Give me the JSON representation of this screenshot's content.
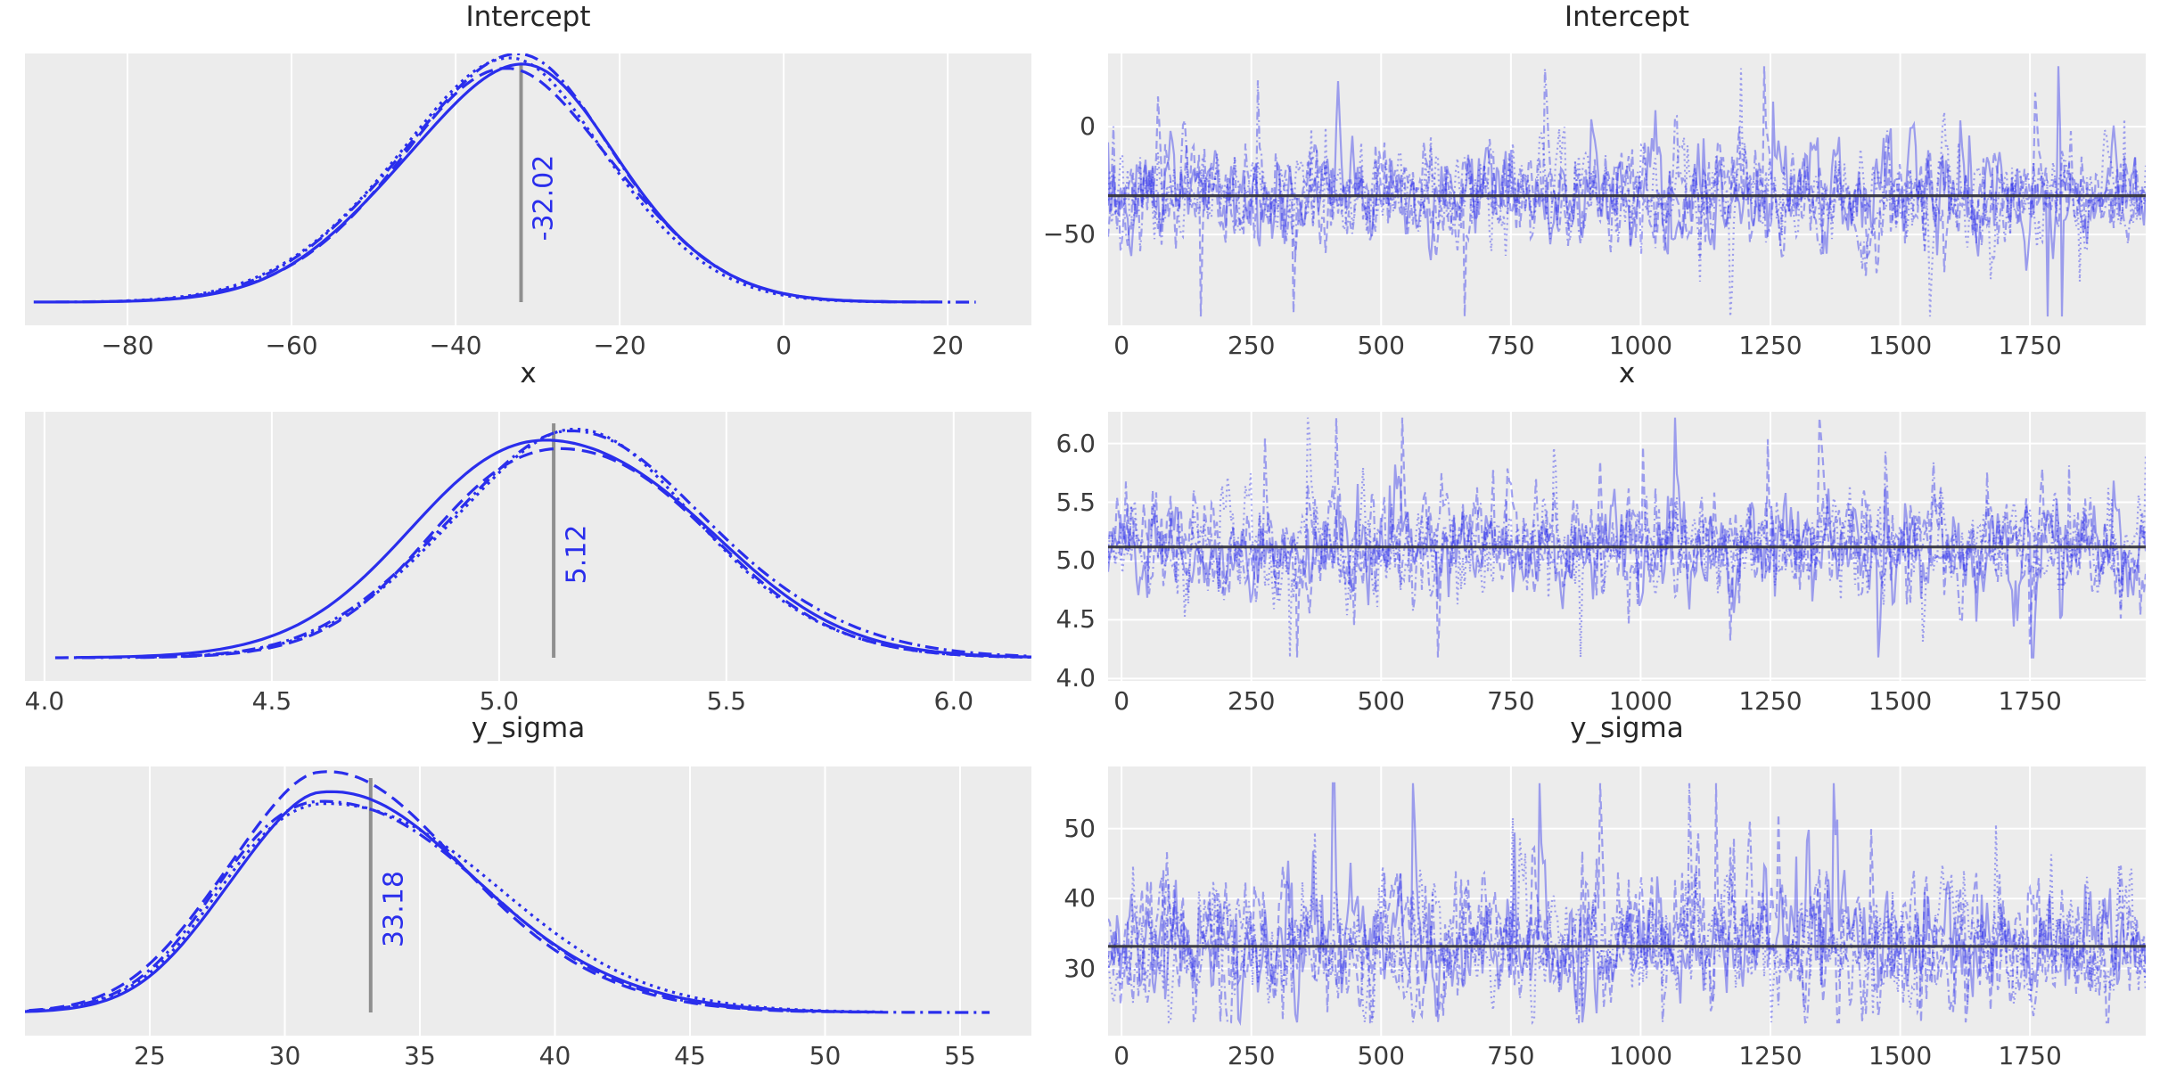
{
  "figure": {
    "description": "Posterior density and MCMC trace plots (4 chains) for parameters Intercept, x, y_sigma",
    "background": "#ffffff",
    "panel_background": "#ececec",
    "grid_color": "#ffffff",
    "line_color": "#2a2eec",
    "trace_opacity": 0.42,
    "ref_line_color": "#8f8f8f",
    "mean_line_color": "#36363e",
    "text_color": "#262626",
    "n_chains": 4,
    "chain_line_styles": [
      "solid",
      "dashed",
      "dotted",
      "dashdot"
    ]
  },
  "chart_data": [
    {
      "panel": "intercept-density",
      "type": "kde",
      "title": "Intercept",
      "mean": -32.02,
      "mean_label": "-32.02",
      "mode": -33,
      "sd_left": 14,
      "sd_right": 12.6,
      "xlim": [
        -92.5,
        30.2
      ],
      "xticks": [
        {
          "v": -80,
          "label": "−80"
        },
        {
          "v": -60,
          "label": "−60"
        },
        {
          "v": -40,
          "label": "−40"
        },
        {
          "v": -20,
          "label": "−20"
        },
        {
          "v": 0,
          "label": "0"
        },
        {
          "v": 20,
          "label": "20"
        }
      ]
    },
    {
      "panel": "intercept-trace",
      "type": "trace",
      "title": "Intercept",
      "mean": -32.02,
      "sd": 11.5,
      "skew": 0,
      "clamp": [
        -88,
        28
      ],
      "n_draws": 2000,
      "xlim": [
        -26,
        1973
      ],
      "ylim": [
        -92.1,
        33.9
      ],
      "xticks": [
        {
          "v": 0,
          "label": "0"
        },
        {
          "v": 250,
          "label": "250"
        },
        {
          "v": 500,
          "label": "500"
        },
        {
          "v": 750,
          "label": "750"
        },
        {
          "v": 1000,
          "label": "1000"
        },
        {
          "v": 1250,
          "label": "1250"
        },
        {
          "v": 1500,
          "label": "1500"
        },
        {
          "v": 1750,
          "label": "1750"
        }
      ],
      "yticks": [
        {
          "v": 0,
          "label": "0"
        },
        {
          "v": -50,
          "label": "−50"
        }
      ]
    },
    {
      "panel": "x-density",
      "type": "kde",
      "title": "x",
      "mean": 5.12,
      "mean_label": "5.12",
      "mode": 5.13,
      "sd_left": 0.27,
      "sd_right": 0.31,
      "xlim": [
        3.957,
        6.171
      ],
      "xticks": [
        {
          "v": 4.0,
          "label": "4.0"
        },
        {
          "v": 4.5,
          "label": "4.5"
        },
        {
          "v": 5.0,
          "label": "5.0"
        },
        {
          "v": 5.5,
          "label": "5.5"
        },
        {
          "v": 6.0,
          "label": "6.0"
        }
      ]
    },
    {
      "panel": "x-trace",
      "type": "trace",
      "title": "x",
      "mean": 5.12,
      "sd": 0.205,
      "skew": 0.1,
      "clamp": [
        4.18,
        6.22
      ],
      "n_draws": 2000,
      "xlim": [
        -26,
        1973
      ],
      "ylim": [
        3.98,
        6.27
      ],
      "xticks": [
        {
          "v": 0,
          "label": "0"
        },
        {
          "v": 250,
          "label": "250"
        },
        {
          "v": 500,
          "label": "500"
        },
        {
          "v": 750,
          "label": "750"
        },
        {
          "v": 1000,
          "label": "1000"
        },
        {
          "v": 1250,
          "label": "1250"
        },
        {
          "v": 1500,
          "label": "1500"
        },
        {
          "v": 1750,
          "label": "1750"
        }
      ],
      "yticks": [
        {
          "v": 6.0,
          "label": "6.0"
        },
        {
          "v": 5.5,
          "label": "5.5"
        },
        {
          "v": 5.0,
          "label": "5.0"
        },
        {
          "v": 4.5,
          "label": "4.5"
        },
        {
          "v": 4.0,
          "label": "4.0"
        }
      ]
    },
    {
      "panel": "y-sigma-density",
      "type": "kde",
      "title": "y_sigma",
      "mean": 33.18,
      "mean_label": "33.18",
      "mode": 31.2,
      "sd_left": 3.3,
      "sd_right": 5.6,
      "xlim": [
        20.38,
        57.64
      ],
      "xticks": [
        {
          "v": 25,
          "label": "25"
        },
        {
          "v": 30,
          "label": "30"
        },
        {
          "v": 35,
          "label": "35"
        },
        {
          "v": 40,
          "label": "40"
        },
        {
          "v": 45,
          "label": "45"
        },
        {
          "v": 50,
          "label": "50"
        },
        {
          "v": 55,
          "label": "55"
        }
      ]
    },
    {
      "panel": "y-sigma-trace",
      "type": "trace",
      "title": "y_sigma",
      "mean": 33.18,
      "sd": 3.9,
      "skew": 0.5,
      "clamp": [
        22.3,
        56.5
      ],
      "n_draws": 2000,
      "xlim": [
        -26,
        1973
      ],
      "ylim": [
        20.4,
        58.9
      ],
      "xticks": [
        {
          "v": 0,
          "label": "0"
        },
        {
          "v": 250,
          "label": "250"
        },
        {
          "v": 500,
          "label": "500"
        },
        {
          "v": 750,
          "label": "750"
        },
        {
          "v": 1000,
          "label": "1000"
        },
        {
          "v": 1250,
          "label": "1250"
        },
        {
          "v": 1500,
          "label": "1500"
        },
        {
          "v": 1750,
          "label": "1750"
        }
      ],
      "yticks": [
        {
          "v": 50,
          "label": "50"
        },
        {
          "v": 40,
          "label": "40"
        },
        {
          "v": 30,
          "label": "30"
        }
      ]
    }
  ]
}
